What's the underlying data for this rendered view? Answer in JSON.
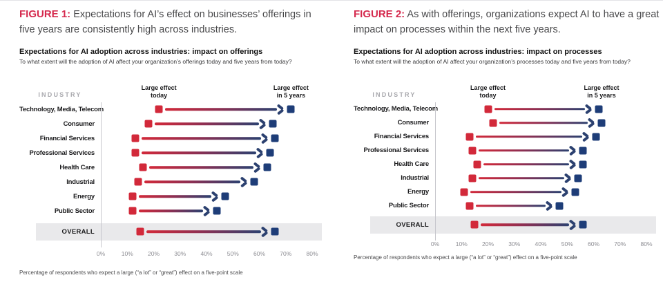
{
  "colors": {
    "figure_label_red": "#d5294d",
    "marker_today_red": "#d2293a",
    "marker_future_blue": "#1e3d78",
    "arrow_navy": "#2c4170",
    "overall_band": "#e9e9eb",
    "axis_gray": "#c6c6cc",
    "tick_gray": "#8c8c92",
    "industry_header_gray": "#a8a8ad"
  },
  "figures": [
    {
      "figure_label": "FIGURE 1:",
      "figure_caption": "Expectations for AI’s effect on businesses’ offerings in five years are consistently high across industries.",
      "chart_title": "Expectations for AI adoption across industries: impact on offerings",
      "chart_question": "To what extent will the adoption of AI affect your organization’s offerings today and five years from today?",
      "industry_header": "INDUSTRY",
      "legend_today": "Large effect today",
      "legend_future": "Large effect in 5 years",
      "footnote": "Percentage of respondents who expect a large (“a lot” or “great”) effect on a five-point scale",
      "chart_data": {
        "type": "dumbbell",
        "title": "Expectations for AI adoption across industries: impact on offerings",
        "categories": [
          "Technology, Media, Telecom",
          "Consumer",
          "Financial Services",
          "Professional Services",
          "Health Care",
          "Industrial",
          "Energy",
          "Public Sector",
          "OVERALL"
        ],
        "series": [
          {
            "name": "Large effect today",
            "values": [
              22,
              18,
              13,
              13,
              16,
              14,
              12,
              12,
              15
            ]
          },
          {
            "name": "Large effect in 5 years",
            "values": [
              72,
              65,
              66,
              64,
              63,
              58,
              47,
              44,
              66
            ]
          }
        ],
        "xlabel": "",
        "ylabel": "INDUSTRY",
        "xlim": [
          0,
          80
        ],
        "xticks": [
          "0%",
          "10%",
          "20%",
          "30%",
          "40%",
          "50%",
          "60%",
          "70%",
          "80%"
        ],
        "grid": false,
        "legend_position": "top",
        "units": "percent of respondents"
      }
    },
    {
      "figure_label": "FIGURE 2:",
      "figure_caption": "As with offerings, organizations expect AI to have a great impact on processes within the next five years.",
      "chart_title": "Expectations for AI adoption across industries: impact on processes",
      "chart_question": "To what extent will the adoption of AI affect your organization’s processes today and five years from today?",
      "industry_header": "INDUSTRY",
      "legend_today": "Large effect today",
      "legend_future": "Large effect in 5 years",
      "footnote": "Percentage of respondents who expect a large (“a lot” or “great”) effect on a five-point scale",
      "chart_data": {
        "type": "dumbbell",
        "title": "Expectations for AI adoption across industries: impact on processes",
        "categories": [
          "Technology, Media, Telecom",
          "Consumer",
          "Financial Services",
          "Professional Services",
          "Health Care",
          "Industrial",
          "Energy",
          "Public Sector",
          "OVERALL"
        ],
        "series": [
          {
            "name": "Large effect today",
            "values": [
              20,
              22,
              13,
              14,
              16,
              14,
              11,
              13,
              15
            ]
          },
          {
            "name": "Large effect in 5 years",
            "values": [
              62,
              63,
              61,
              56,
              56,
              54,
              53,
              47,
              56
            ]
          }
        ],
        "xlabel": "",
        "ylabel": "INDUSTRY",
        "xlim": [
          0,
          80
        ],
        "xticks": [
          "0%",
          "10%",
          "20%",
          "30%",
          "40%",
          "50%",
          "60%",
          "70%",
          "80%"
        ],
        "grid": false,
        "legend_position": "top",
        "units": "percent of respondents"
      }
    }
  ]
}
